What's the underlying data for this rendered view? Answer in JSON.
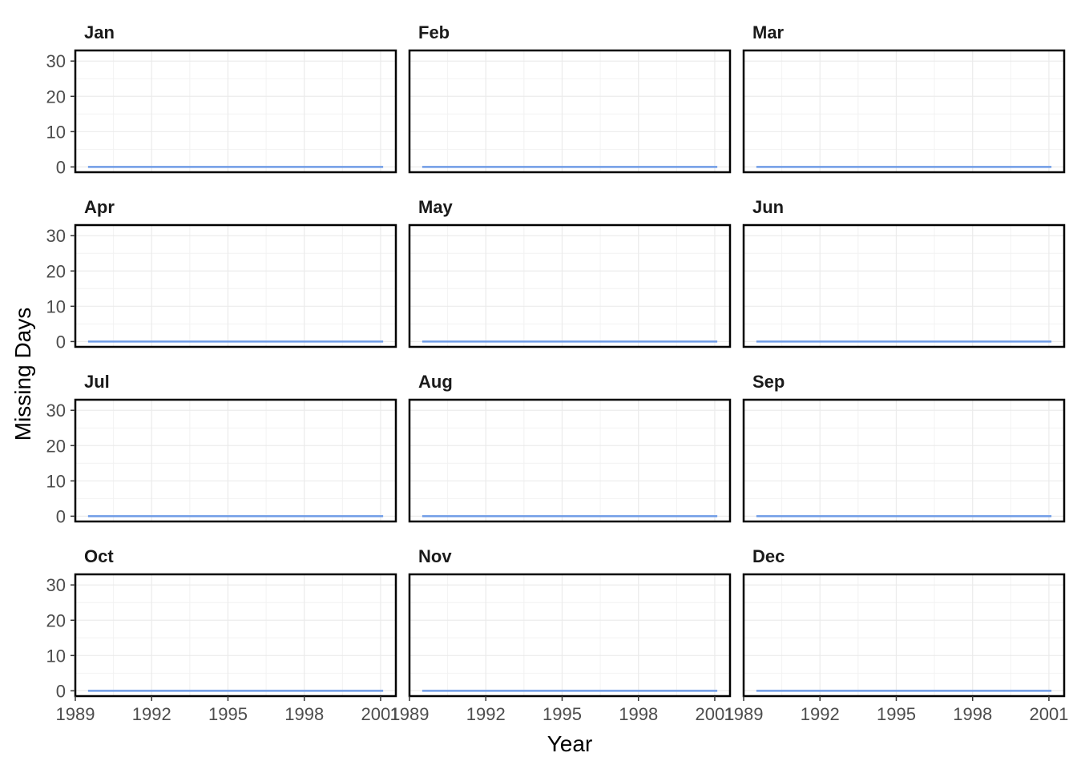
{
  "chart_data": {
    "type": "line",
    "xlabel": "Year",
    "ylabel": "Missing Days",
    "xlim": [
      1989,
      2001.6
    ],
    "ylim": [
      -1.5,
      33
    ],
    "x_ticks": [
      1989,
      1992,
      1995,
      1998,
      2001
    ],
    "y_ticks": [
      0,
      10,
      20,
      30
    ],
    "x_minor_ticks": [
      1990.5,
      1993.5,
      1996.5,
      1999.5
    ],
    "y_minor_ticks": [
      5,
      15,
      25
    ],
    "grid": true,
    "line_color": "#6f9ce6",
    "x": [
      1989.5,
      1990.5,
      1991.5,
      1992.5,
      1993.5,
      1994.5,
      1995.5,
      1996.5,
      1997.5,
      1998.5,
      1999.5,
      2000.5,
      2001.1
    ],
    "panels": [
      {
        "name": "Jan",
        "values": [
          0,
          0,
          0,
          0,
          0,
          0,
          0,
          0,
          0,
          0,
          0,
          0,
          0
        ]
      },
      {
        "name": "Feb",
        "values": [
          0,
          0,
          0,
          0,
          0,
          0,
          0,
          0,
          0,
          0,
          0,
          0,
          0
        ]
      },
      {
        "name": "Mar",
        "values": [
          0,
          0,
          0,
          0,
          0,
          0,
          0,
          0,
          0,
          0,
          0,
          0,
          0
        ]
      },
      {
        "name": "Apr",
        "values": [
          0,
          0,
          0,
          0,
          0,
          0,
          0,
          0,
          0,
          0,
          0,
          0,
          0
        ]
      },
      {
        "name": "May",
        "values": [
          0,
          0,
          0,
          0,
          0,
          0,
          0,
          0,
          0,
          0,
          0,
          0,
          0
        ]
      },
      {
        "name": "Jun",
        "values": [
          0,
          0,
          0,
          0,
          0,
          0,
          0,
          0,
          0,
          0,
          0,
          0,
          0
        ]
      },
      {
        "name": "Jul",
        "values": [
          0,
          0,
          0,
          0,
          0,
          0,
          0,
          0,
          0,
          0,
          0,
          0,
          0
        ]
      },
      {
        "name": "Aug",
        "values": [
          0,
          0,
          0,
          0,
          0,
          0,
          0,
          0,
          0,
          0,
          0,
          0,
          0
        ]
      },
      {
        "name": "Sep",
        "values": [
          0,
          0,
          0,
          0,
          0,
          0,
          0,
          0,
          0,
          0,
          0,
          0,
          0
        ]
      },
      {
        "name": "Oct",
        "values": [
          0,
          0,
          0,
          0,
          0,
          0,
          0,
          0,
          0,
          0,
          0,
          0,
          0
        ]
      },
      {
        "name": "Nov",
        "values": [
          0,
          0,
          0,
          0,
          0,
          0,
          0,
          0,
          0,
          0,
          0,
          0,
          0
        ]
      },
      {
        "name": "Dec",
        "values": [
          0,
          0,
          0,
          0,
          0,
          0,
          0,
          0,
          0,
          0,
          0,
          0,
          0
        ]
      }
    ]
  }
}
